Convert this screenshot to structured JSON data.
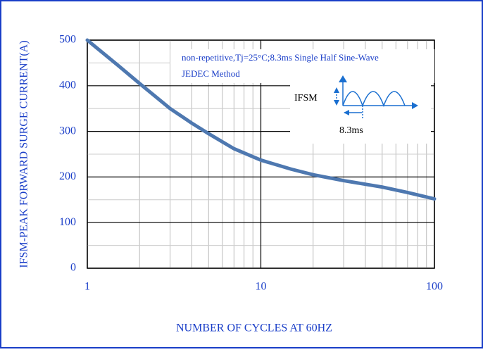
{
  "chart_data": {
    "type": "line",
    "ylabel": "IFSM-PEAK FORWARD SURGE CURRENT(A)",
    "xlabel": "NUMBER OF CYCLES AT 60HZ",
    "annotations": [
      "non-repetitive,Tj=25°C;8.3ms Single Half Sine-Wave",
      "JEDEC Method"
    ],
    "diagram_labels": [
      "IFSM",
      "8.3ms"
    ],
    "xscale": "log",
    "x": [
      1,
      1.5,
      2,
      3,
      4,
      5,
      7,
      10,
      15,
      20,
      30,
      50,
      70,
      100
    ],
    "series": [
      {
        "color": "#4e78b0",
        "values": [
          500,
          445,
          405,
          350,
          318,
          295,
          262,
          237,
          217,
          205,
          192,
          178,
          166,
          152
        ]
      }
    ],
    "xlim": [
      1,
      100
    ],
    "xticks": [
      1,
      10,
      100
    ],
    "xminor": [
      2,
      3,
      4,
      5,
      6,
      7,
      8,
      9,
      20,
      30,
      40,
      50,
      60,
      70,
      80,
      90
    ],
    "ylim": [
      0,
      500
    ],
    "yticks": [
      0,
      100,
      200,
      300,
      400,
      500
    ],
    "yminor": [
      50,
      150,
      250,
      350,
      450
    ],
    "grid": true
  }
}
